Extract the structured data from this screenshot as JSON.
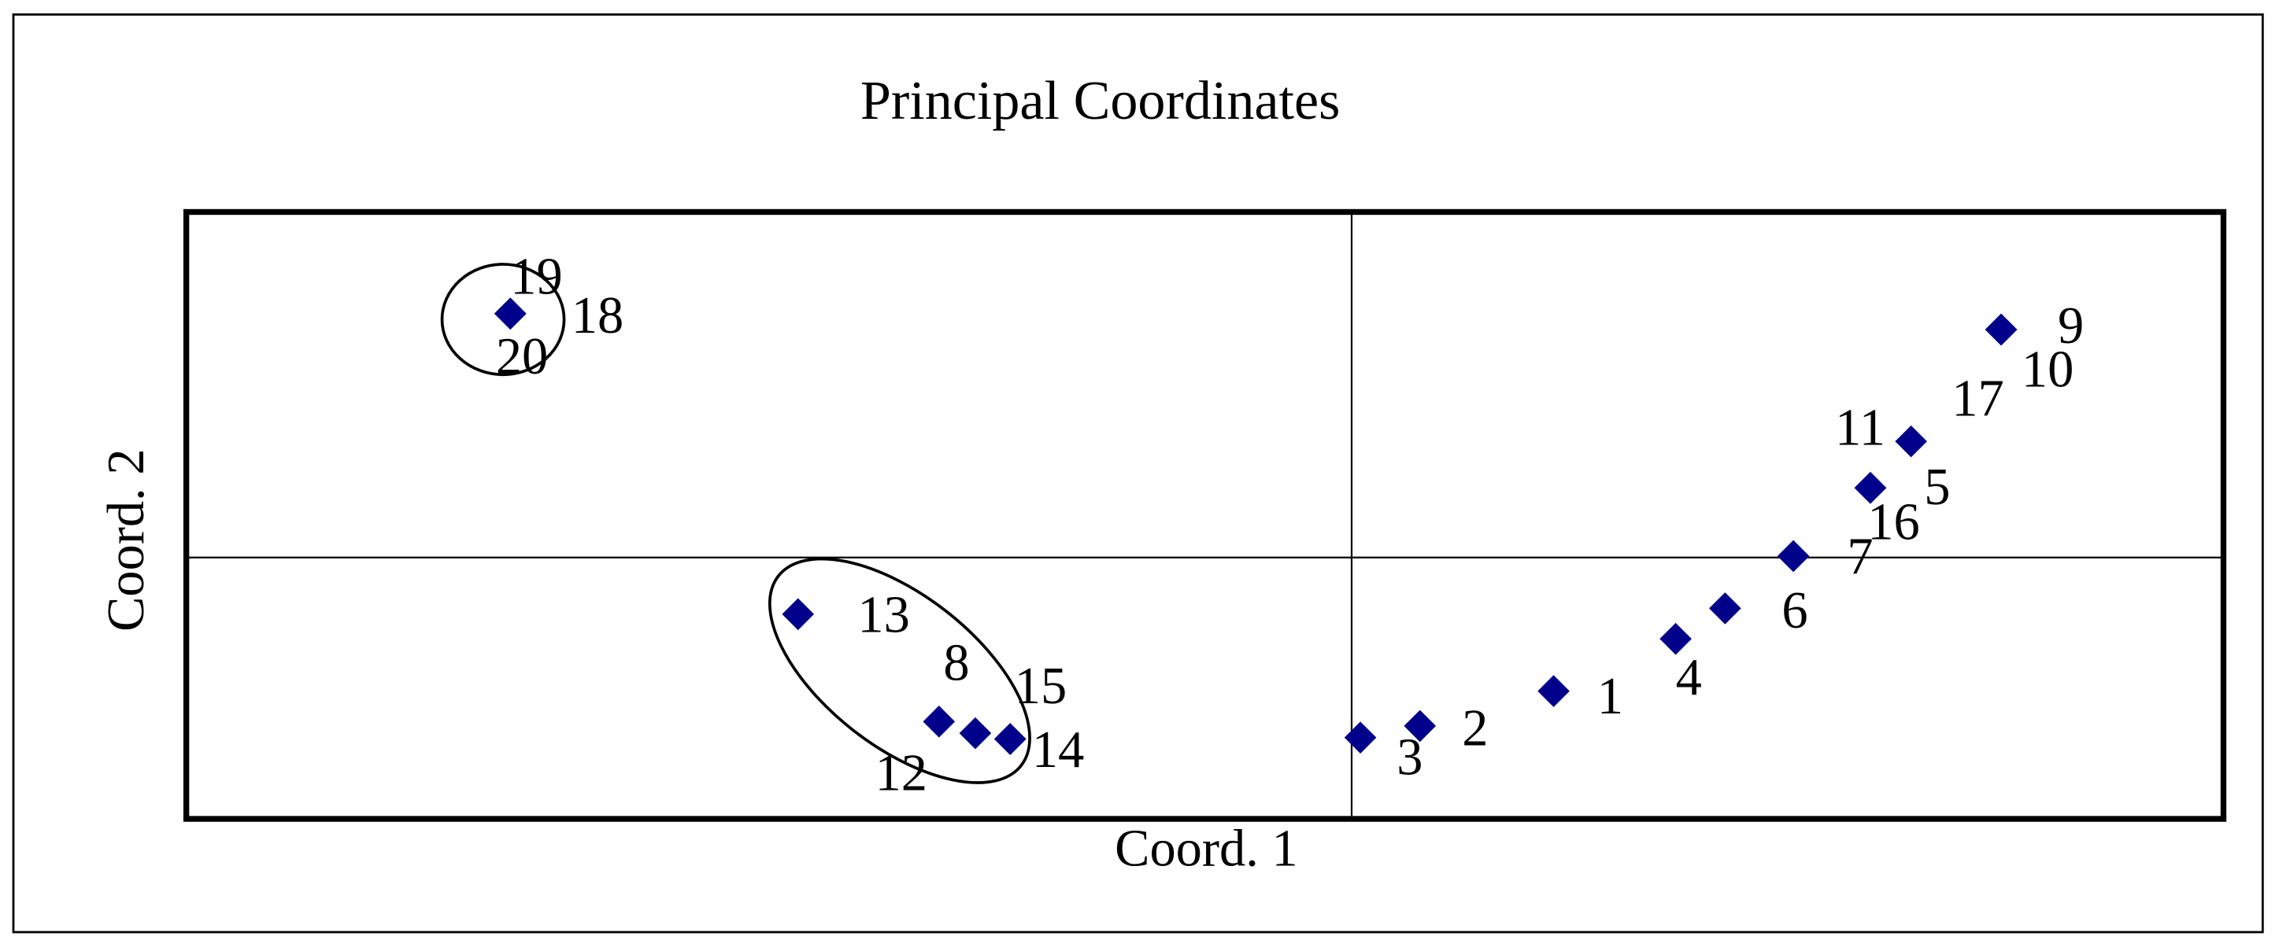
{
  "chart_data": {
    "type": "scatter",
    "title": "Principal Coordinates",
    "x_label": "Coord. 1",
    "y_label": "Coord. 2",
    "color": "#00008b",
    "xlim": [
      -0.802,
      0.6
    ],
    "ylim": [
      -0.18,
      0.238
    ],
    "labels": [
      "1",
      "2",
      "3",
      "4",
      "5",
      "6",
      "7",
      "8",
      "9",
      "10",
      "11",
      "12",
      "13",
      "14",
      "15",
      "16",
      "17",
      "18",
      "19",
      "20"
    ],
    "x": [
      0.139,
      0.047,
      0.006,
      0.223,
      0.357,
      0.257,
      0.304,
      -0.259,
      0.447,
      0.447,
      0.385,
      -0.284,
      -0.381,
      -0.235,
      -0.235,
      0.357,
      0.447,
      -0.579,
      -0.579,
      -0.579
    ],
    "values": [
      -0.092,
      -0.116,
      -0.124,
      -0.056,
      0.048,
      -0.035,
      0.001,
      -0.121,
      0.157,
      0.157,
      0.08,
      -0.113,
      -0.039,
      -0.125,
      -0.125,
      0.048,
      0.157,
      0.168,
      0.168,
      0.168
    ]
  }
}
